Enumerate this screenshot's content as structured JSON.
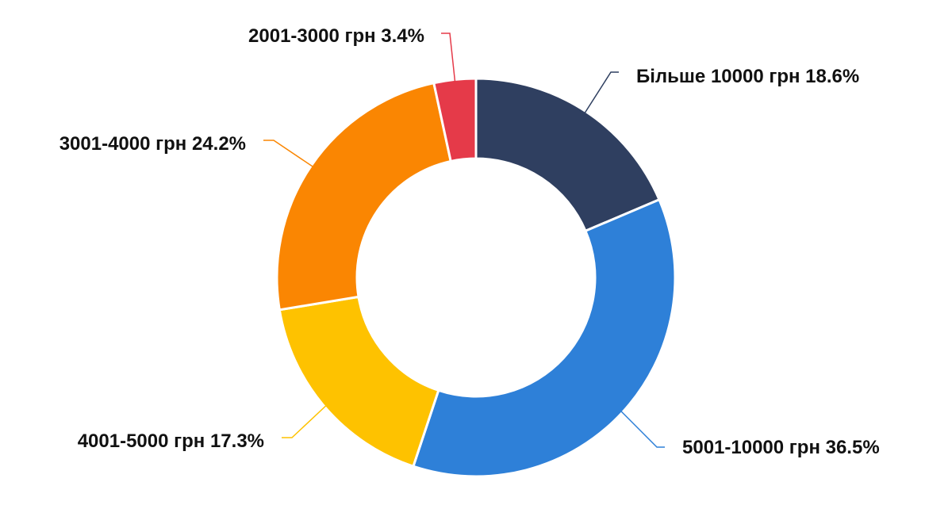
{
  "chart_data": {
    "type": "pie",
    "variant": "donut",
    "title": "",
    "slices": [
      {
        "category": "Більше 10000 грн",
        "value": 18.6,
        "label": "Більше 10000 грн 18.6%",
        "color": "#2f3f60"
      },
      {
        "category": "5001-10000 грн",
        "value": 36.5,
        "label": "5001-10000 грн 36.5%",
        "color": "#2e80d8"
      },
      {
        "category": "4001-5000 грн",
        "value": 17.3,
        "label": "4001-5000 грн 17.3%",
        "color": "#fec200"
      },
      {
        "category": "3001-4000 грн",
        "value": 24.2,
        "label": "3001-4000 грн 24.2%",
        "color": "#fa8602"
      },
      {
        "category": "2001-3000 грн",
        "value": 3.4,
        "label": "2001-3000 грн 3.4%",
        "color": "#e53a49"
      }
    ],
    "legend": "none",
    "start": "top, clockwise"
  }
}
